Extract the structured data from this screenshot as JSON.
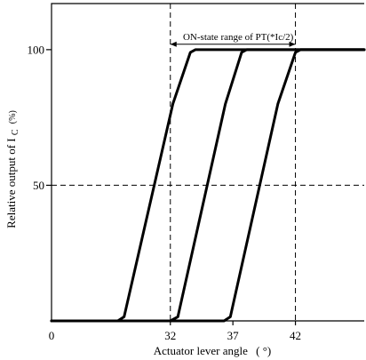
{
  "chart_data": {
    "type": "line",
    "xlabel": "Actuator lever angle",
    "xlabel_unit": "( °)",
    "ylabel": "Relative output of I",
    "ylabel_sub": "C",
    "ylabel_unit": "(%)",
    "x_origin_label": "0",
    "x_ticks": [
      {
        "value": 32,
        "label": "32"
      },
      {
        "value": 37,
        "label": "37"
      },
      {
        "value": 42,
        "label": "42"
      }
    ],
    "y_ticks": [
      {
        "value": 50,
        "label": "50"
      },
      {
        "value": 100,
        "label": "100"
      }
    ],
    "xlim": [
      22.5,
      47.5
    ],
    "ylim": [
      0,
      117
    ],
    "grid": "dashed lines at x = 32, 42 and y = 50",
    "annotation": {
      "text": "ON-state range of PT(*Ic/2)",
      "from_x": 32,
      "to_x": 42,
      "at_y": 102
    },
    "series": [
      {
        "values": [
          [
            22.5,
            0
          ],
          [
            27.8,
            0
          ],
          [
            28.3,
            1.5
          ],
          [
            32.2,
            80
          ],
          [
            33.6,
            99
          ],
          [
            34.0,
            100
          ],
          [
            47.5,
            100
          ]
        ]
      },
      {
        "values": [
          [
            22.5,
            0
          ],
          [
            32.0,
            0
          ],
          [
            32.6,
            1.5
          ],
          [
            36.4,
            80
          ],
          [
            37.7,
            99
          ],
          [
            38.1,
            100
          ],
          [
            47.5,
            100
          ]
        ]
      },
      {
        "values": [
          [
            22.5,
            0
          ],
          [
            36.3,
            0
          ],
          [
            36.8,
            1.5
          ],
          [
            40.6,
            80
          ],
          [
            42.0,
            99
          ],
          [
            42.4,
            100
          ],
          [
            47.5,
            100
          ]
        ]
      }
    ]
  }
}
